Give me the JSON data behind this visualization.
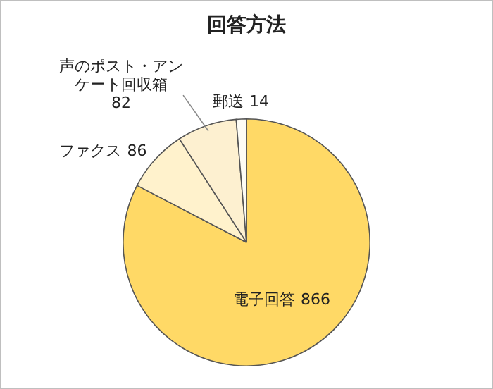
{
  "chart_data": {
    "type": "pie",
    "title": "回答方法",
    "categories": [
      "電子回答",
      "ファクス",
      "声のポスト・アンケート回収箱",
      "郵送"
    ],
    "values": [
      866,
      86,
      82,
      14
    ],
    "colors": [
      "#ffd966",
      "#fff2cc",
      "#fdf0d0",
      "#fdfcf5"
    ],
    "data_labels": true,
    "legend": false
  }
}
